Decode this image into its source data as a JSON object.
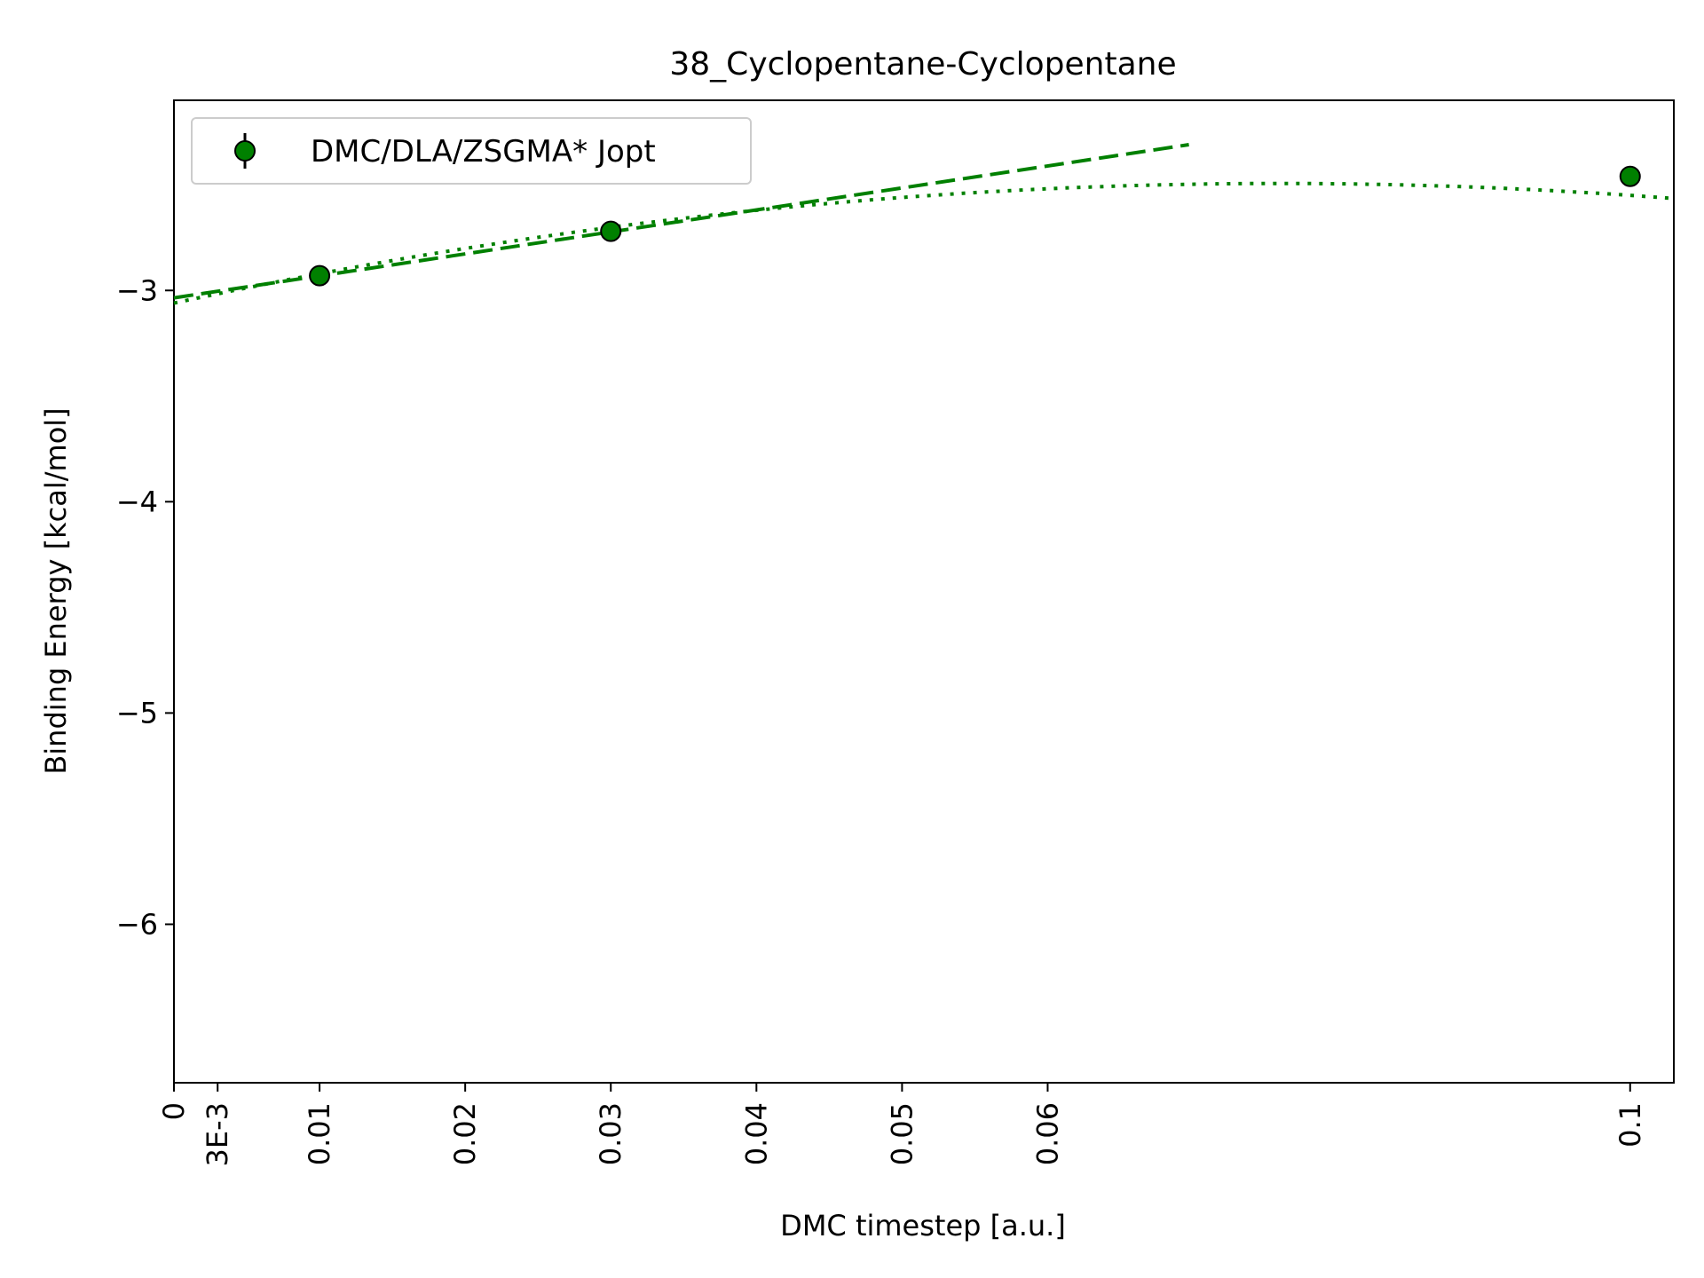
{
  "chart_data": {
    "type": "scatter",
    "title": "38_Cyclopentane-Cyclopentane",
    "xlabel": "DMC timestep [a.u.]",
    "ylabel": "Binding Energy [kcal/mol]",
    "xlim": [
      0,
      0.103
    ],
    "ylim": [
      -6.75,
      -2.1
    ],
    "grid": false,
    "legend_position": "top-left",
    "x_ticks": [
      {
        "value": 0,
        "label": "0"
      },
      {
        "value": 0.003,
        "label": "3E-3"
      },
      {
        "value": 0.01,
        "label": "0.01"
      },
      {
        "value": 0.02,
        "label": "0.02"
      },
      {
        "value": 0.03,
        "label": "0.03"
      },
      {
        "value": 0.04,
        "label": "0.04"
      },
      {
        "value": 0.05,
        "label": "0.05"
      },
      {
        "value": 0.06,
        "label": "0.06"
      },
      {
        "value": 0.1,
        "label": "0.1"
      }
    ],
    "y_ticks": [
      {
        "value": -3,
        "label": "−3"
      },
      {
        "value": -4,
        "label": "−4"
      },
      {
        "value": -5,
        "label": "−5"
      },
      {
        "value": -6,
        "label": "−6"
      }
    ],
    "series": [
      {
        "name": "DMC/DLA/ZSGMA* Jopt",
        "color": "#008000",
        "x": [
          0.01,
          0.03,
          0.1
        ],
        "y": [
          -2.93,
          -2.72,
          -2.46
        ],
        "yerr": [
          0.04,
          0.03,
          0.04
        ]
      }
    ],
    "fits": [
      {
        "style": "dashed",
        "color": "#008000",
        "x": [
          0,
          0.0697
        ],
        "y": [
          -3.035,
          -2.31
        ]
      },
      {
        "style": "dotted",
        "color": "#008000",
        "quadratic": [
          -3.06,
          14.9,
          -98
        ],
        "xrange": [
          0,
          0.103
        ]
      }
    ]
  }
}
